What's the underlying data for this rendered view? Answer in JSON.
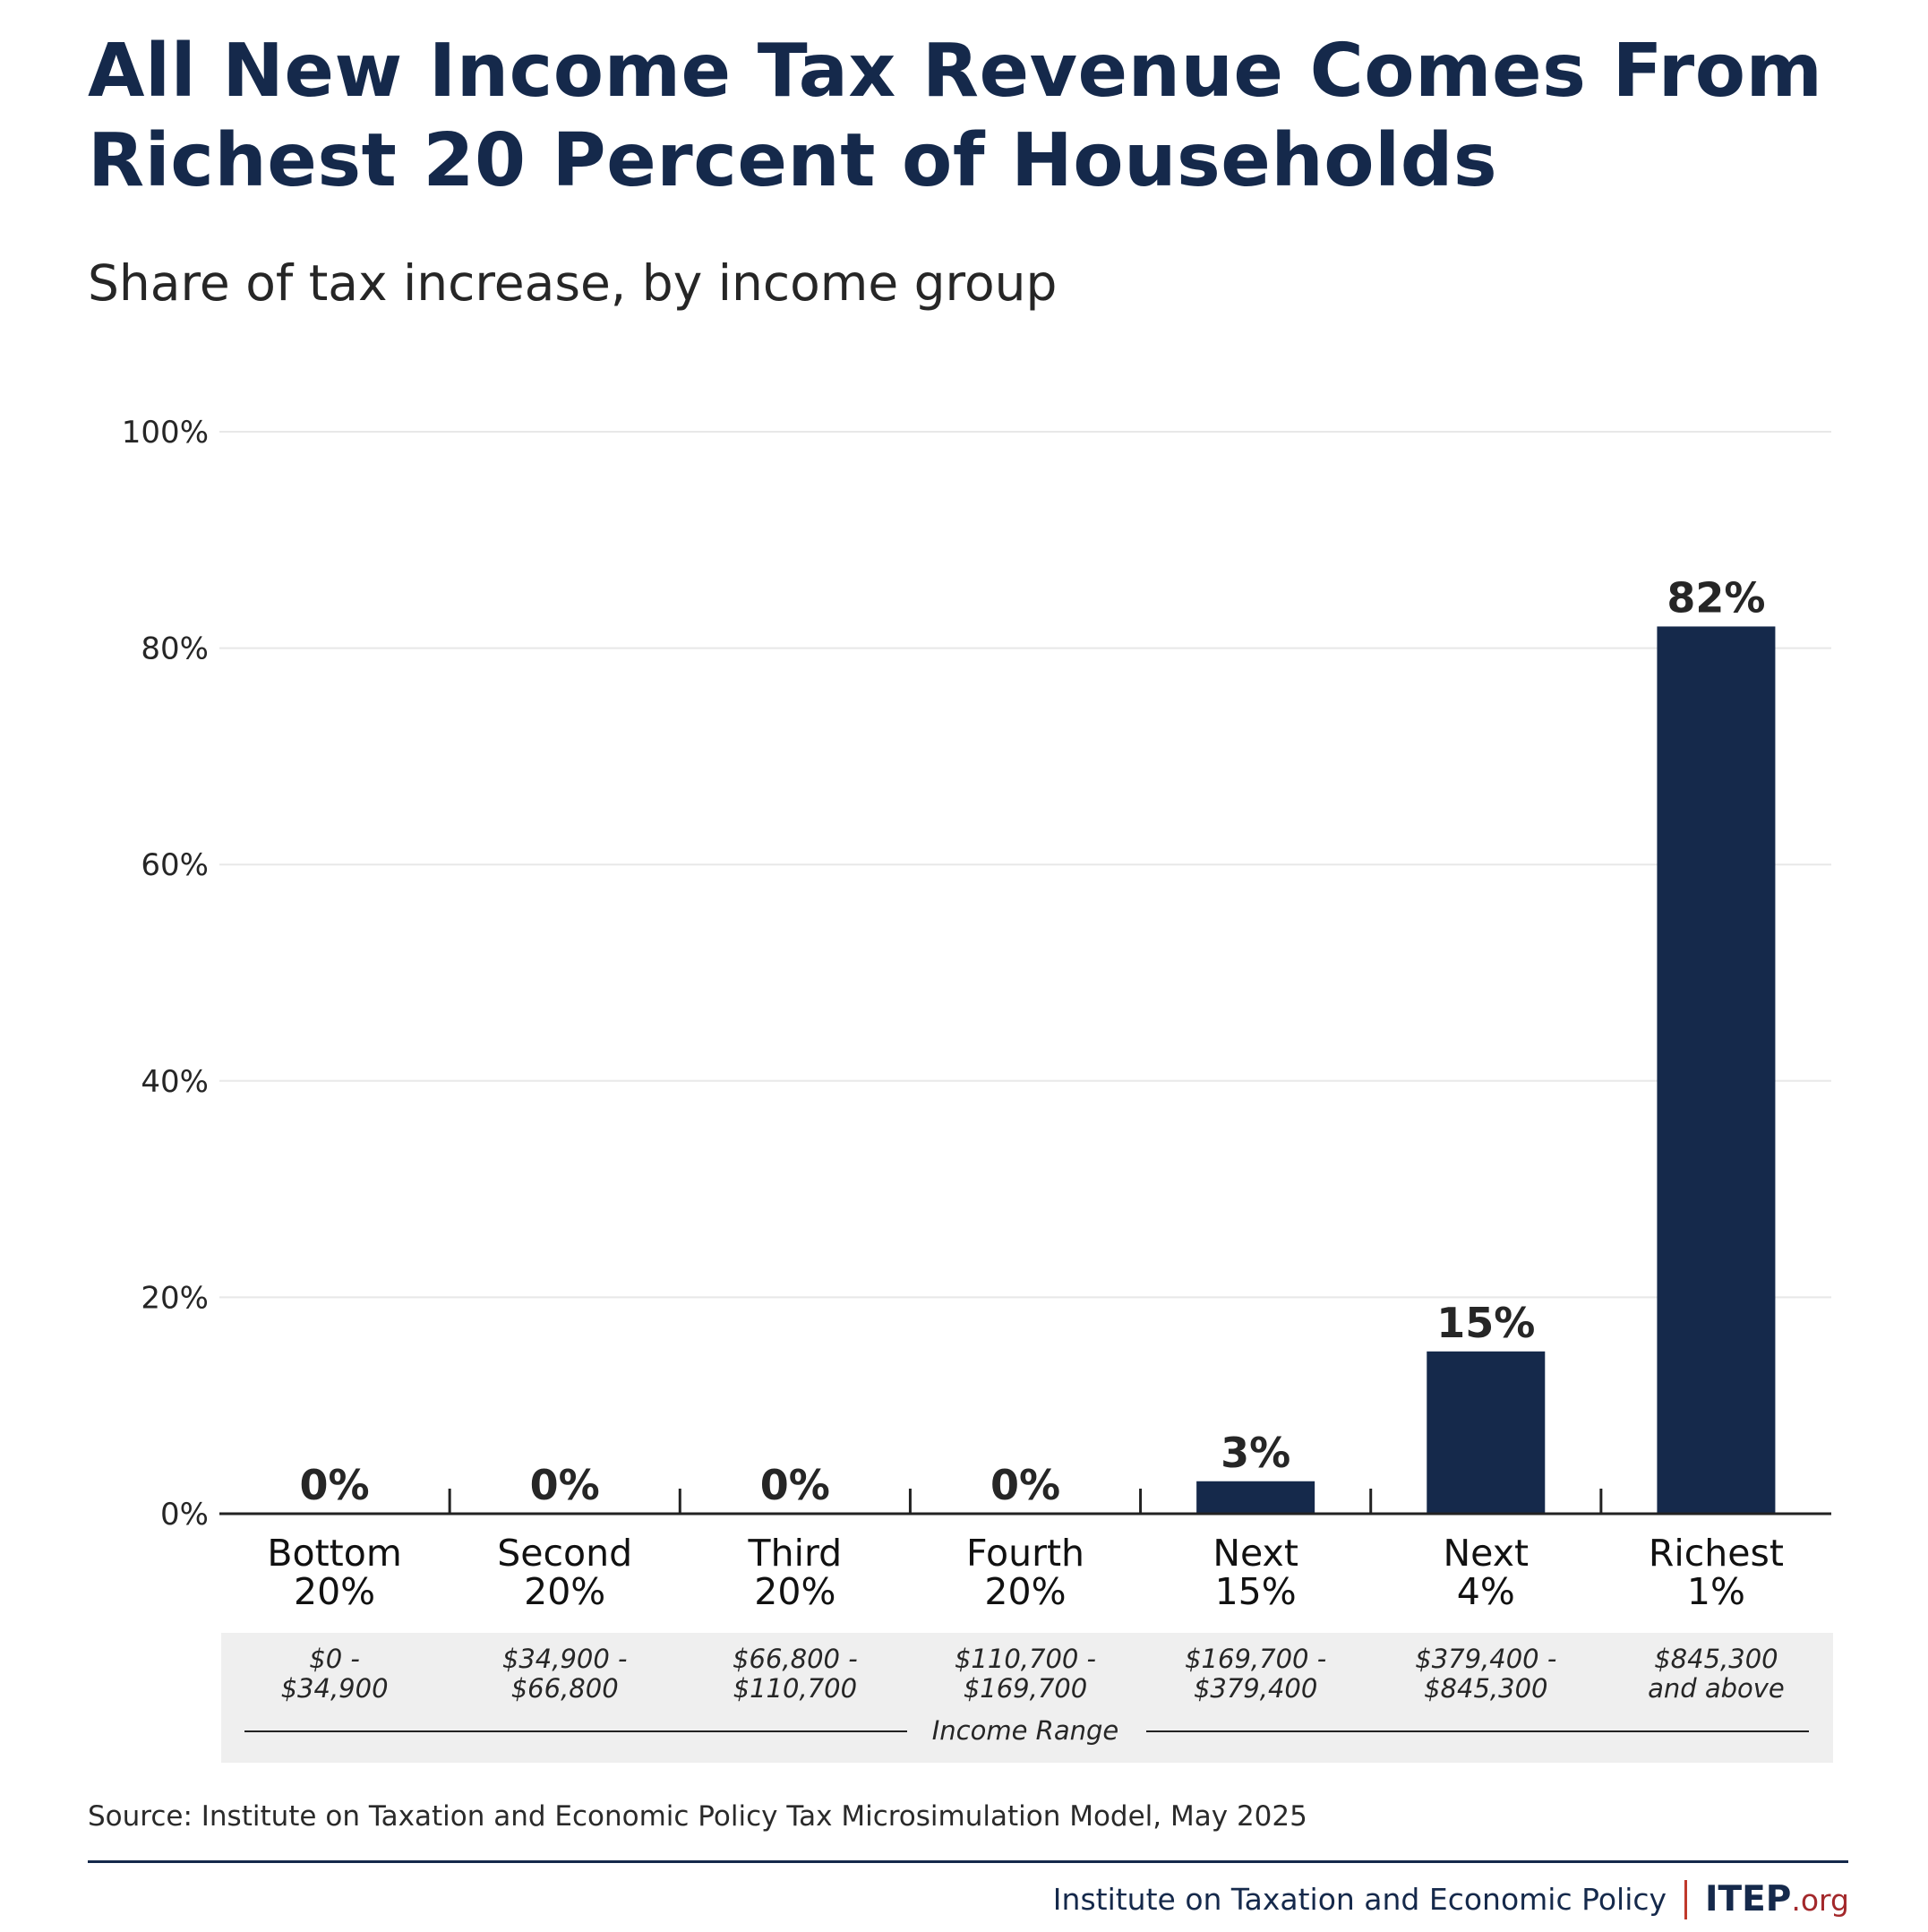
{
  "title_lines": [
    "All New Income Tax Revenue Comes From",
    "Richest 20 Percent of Households"
  ],
  "subtitle": "Share of tax increase, by income group",
  "source": "Source: Institute on Taxation and Economic Policy Tax Microsimulation Model, May 2025",
  "footer": {
    "org_name": "Institute on Taxation and Economic Policy",
    "logo_main": "ITEP",
    "logo_suffix": ".org"
  },
  "colors": {
    "bar": "#15294b",
    "title": "#15294b",
    "grid": "#e8e8e8",
    "range_band": "#efefef"
  },
  "chart_data": {
    "type": "bar",
    "title": "All New Income Tax Revenue Comes From Richest 20 Percent of Households",
    "subtitle": "Share of tax increase, by income group",
    "categories": [
      [
        "Bottom",
        "20%"
      ],
      [
        "Second",
        "20%"
      ],
      [
        "Third",
        "20%"
      ],
      [
        "Fourth",
        "20%"
      ],
      [
        "Next",
        "15%"
      ],
      [
        "Next",
        "4%"
      ],
      [
        "Richest",
        "1%"
      ]
    ],
    "values": [
      0,
      0,
      0,
      0,
      3,
      15,
      82
    ],
    "value_labels": [
      "0%",
      "0%",
      "0%",
      "0%",
      "3%",
      "15%",
      "82%"
    ],
    "income_ranges": [
      [
        "$0 -",
        "$34,900"
      ],
      [
        "$34,900 -",
        "$66,800"
      ],
      [
        "$66,800 -",
        "$110,700"
      ],
      [
        "$110,700 -",
        "$169,700"
      ],
      [
        "$169,700 -",
        "$379,400"
      ],
      [
        "$379,400 -",
        "$845,300"
      ],
      [
        "$845,300",
        "and above"
      ]
    ],
    "income_range_label": "Income Range",
    "ylim": [
      0,
      100
    ],
    "yticks": [
      0,
      20,
      40,
      60,
      80,
      100
    ],
    "ytick_labels": [
      "0%",
      "20%",
      "40%",
      "60%",
      "80%",
      "100%"
    ],
    "grid": true
  }
}
